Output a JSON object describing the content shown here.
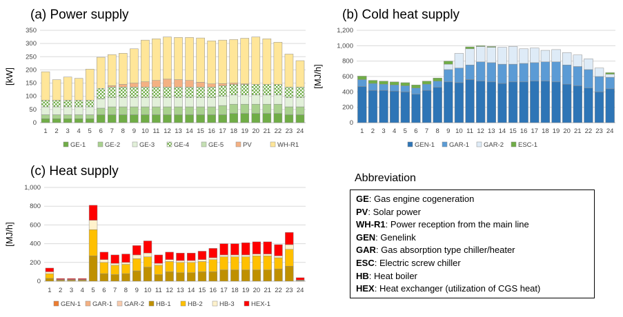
{
  "chart_data": [
    {
      "type": "bar",
      "stacked": true,
      "title": "(a) Power supply",
      "ylabel": "[kW]",
      "ylim": [
        0,
        350
      ],
      "yticks": [
        0,
        50,
        100,
        150,
        200,
        250,
        300,
        350
      ],
      "categories": [
        "1",
        "2",
        "3",
        "4",
        "5",
        "6",
        "7",
        "8",
        "9",
        "10",
        "11",
        "12",
        "13",
        "14",
        "15",
        "16",
        "17",
        "18",
        "19",
        "20",
        "21",
        "22",
        "23",
        "24"
      ],
      "legend_position": "bottom",
      "grid": true,
      "series": [
        {
          "name": "GE-1",
          "color": "#70ad47",
          "values": [
            15,
            15,
            15,
            15,
            15,
            30,
            30,
            30,
            30,
            30,
            30,
            30,
            30,
            30,
            30,
            30,
            30,
            35,
            35,
            35,
            35,
            35,
            30,
            30
          ]
        },
        {
          "name": "GE-2",
          "color": "#a9d18e",
          "values": [
            15,
            15,
            15,
            15,
            15,
            25,
            30,
            30,
            30,
            30,
            30,
            30,
            30,
            30,
            30,
            30,
            35,
            35,
            35,
            35,
            35,
            35,
            30,
            30
          ]
        },
        {
          "name": "GE-3",
          "color": "#e2f0d9",
          "values": [
            30,
            30,
            30,
            30,
            30,
            35,
            35,
            35,
            35,
            35,
            35,
            35,
            35,
            35,
            35,
            35,
            35,
            35,
            35,
            35,
            35,
            35,
            35,
            35
          ]
        },
        {
          "name": "GE-4",
          "color": "#ffffff",
          "pattern": true,
          "values": [
            25,
            25,
            25,
            25,
            25,
            40,
            40,
            40,
            40,
            40,
            40,
            40,
            40,
            40,
            40,
            40,
            40,
            40,
            40,
            40,
            40,
            40,
            40,
            40
          ]
        },
        {
          "name": "GE-5",
          "color": "#c5e0b4",
          "values": [
            0,
            0,
            0,
            0,
            0,
            0,
            0,
            0,
            0,
            0,
            0,
            0,
            0,
            0,
            0,
            0,
            0,
            0,
            0,
            0,
            0,
            0,
            0,
            0
          ]
        },
        {
          "name": "PV",
          "color": "#f4b183",
          "values": [
            0,
            0,
            0,
            0,
            0,
            0,
            5,
            10,
            15,
            20,
            25,
            30,
            28,
            25,
            18,
            12,
            8,
            5,
            2,
            0,
            0,
            0,
            0,
            0
          ]
        },
        {
          "name": "WH-R1",
          "color": "#ffe699",
          "values": [
            108,
            78,
            88,
            83,
            118,
            118,
            118,
            118,
            130,
            158,
            158,
            160,
            160,
            163,
            168,
            163,
            165,
            165,
            173,
            180,
            173,
            160,
            125,
            100
          ]
        }
      ]
    },
    {
      "type": "bar",
      "stacked": true,
      "title": "(b) Cold heat supply",
      "ylabel": "[MJ/h]",
      "ylim": [
        0,
        1200
      ],
      "yticks": [
        "0",
        "200",
        "400",
        "600",
        "800",
        "1,000",
        "1,200"
      ],
      "categories": [
        "1",
        "2",
        "3",
        "4",
        "5",
        "6",
        "7",
        "8",
        "9",
        "10",
        "11",
        "12",
        "13",
        "14",
        "15",
        "16",
        "17",
        "18",
        "19",
        "20",
        "21",
        "22",
        "23",
        "24"
      ],
      "legend_position": "bottom",
      "grid": true,
      "series": [
        {
          "name": "GEN-1",
          "color": "#2e75b6",
          "values": [
            470,
            420,
            420,
            410,
            400,
            370,
            420,
            460,
            530,
            520,
            560,
            540,
            530,
            510,
            530,
            530,
            540,
            540,
            530,
            500,
            480,
            450,
            400,
            440
          ]
        },
        {
          "name": "GAR-1",
          "color": "#5b9bd5",
          "values": [
            90,
            90,
            80,
            80,
            80,
            80,
            80,
            80,
            160,
            190,
            190,
            250,
            250,
            250,
            230,
            240,
            240,
            250,
            260,
            250,
            250,
            240,
            200,
            150
          ]
        },
        {
          "name": "GAR-2",
          "color": "#deebf7",
          "values": [
            0,
            0,
            0,
            0,
            0,
            0,
            0,
            0,
            70,
            190,
            210,
            200,
            200,
            220,
            230,
            190,
            190,
            150,
            160,
            160,
            150,
            140,
            110,
            40
          ]
        },
        {
          "name": "ESC-1",
          "color": "#70ad47",
          "values": [
            45,
            40,
            40,
            40,
            40,
            40,
            40,
            40,
            40,
            0,
            25,
            10,
            10,
            0,
            0,
            0,
            0,
            0,
            0,
            0,
            0,
            0,
            0,
            20
          ]
        }
      ]
    },
    {
      "type": "bar",
      "stacked": true,
      "title": "(c) Heat supply",
      "ylabel": "[MJ/h]",
      "ylim": [
        0,
        1000
      ],
      "yticks": [
        "0",
        "200",
        "400",
        "600",
        "800",
        "1,000"
      ],
      "categories": [
        "1",
        "2",
        "3",
        "4",
        "5",
        "6",
        "7",
        "8",
        "9",
        "10",
        "11",
        "12",
        "13",
        "14",
        "15",
        "16",
        "17",
        "18",
        "19",
        "20",
        "21",
        "22",
        "23",
        "24"
      ],
      "legend_position": "bottom",
      "grid": true,
      "series": [
        {
          "name": "GEN-1",
          "color": "#ed7d31",
          "values": [
            0,
            0,
            0,
            0,
            0,
            0,
            0,
            0,
            0,
            0,
            0,
            0,
            0,
            0,
            0,
            0,
            0,
            0,
            0,
            0,
            0,
            0,
            0,
            0
          ]
        },
        {
          "name": "GAR-1",
          "color": "#f4b183",
          "values": [
            0,
            0,
            0,
            0,
            0,
            0,
            0,
            0,
            0,
            0,
            0,
            0,
            0,
            0,
            0,
            0,
            0,
            0,
            0,
            0,
            0,
            0,
            0,
            0
          ]
        },
        {
          "name": "GAR-2",
          "color": "#f8cbad",
          "values": [
            0,
            0,
            0,
            0,
            0,
            0,
            0,
            0,
            0,
            0,
            0,
            0,
            0,
            0,
            0,
            0,
            0,
            0,
            0,
            0,
            0,
            0,
            0,
            0
          ]
        },
        {
          "name": "HB-1",
          "color": "#bf9000",
          "values": [
            30,
            10,
            10,
            10,
            270,
            80,
            70,
            80,
            110,
            150,
            70,
            100,
            90,
            90,
            100,
            100,
            120,
            120,
            120,
            120,
            120,
            130,
            160,
            5
          ]
        },
        {
          "name": "HB-2",
          "color": "#ffc000",
          "values": [
            50,
            5,
            5,
            5,
            280,
            120,
            100,
            100,
            130,
            110,
            100,
            110,
            110,
            110,
            110,
            130,
            140,
            140,
            140,
            150,
            150,
            120,
            180,
            5
          ]
        },
        {
          "name": "HB-3",
          "color": "#fff2cc",
          "values": [
            20,
            3,
            3,
            3,
            100,
            30,
            20,
            20,
            40,
            40,
            20,
            20,
            20,
            20,
            20,
            20,
            20,
            20,
            20,
            20,
            20,
            20,
            50,
            2
          ]
        },
        {
          "name": "HEX-1",
          "color": "#ff0000",
          "values": [
            40,
            10,
            10,
            10,
            160,
            80,
            90,
            90,
            100,
            130,
            90,
            80,
            80,
            80,
            90,
            100,
            120,
            120,
            130,
            130,
            130,
            120,
            130,
            25
          ]
        }
      ]
    }
  ],
  "abbreviation": {
    "title": "Abbreviation",
    "items": [
      {
        "key": "GE",
        "text": ": Gas engine cogeneration"
      },
      {
        "key": "PV",
        "text": ": Solar power"
      },
      {
        "key": "WH-R1",
        "text": ": Power reception from the main line"
      },
      {
        "key": "GEN",
        "text": ": Genelink"
      },
      {
        "key": "GAR",
        "text": ": Gas absorption type chiller/heater"
      },
      {
        "key": "ESC",
        "text": ": Electric screw chiller"
      },
      {
        "key": "HB",
        "text": ": Heat boiler"
      },
      {
        "key": "HEX",
        "text": ": Heat exchanger (utilization of CGS heat)"
      }
    ]
  }
}
